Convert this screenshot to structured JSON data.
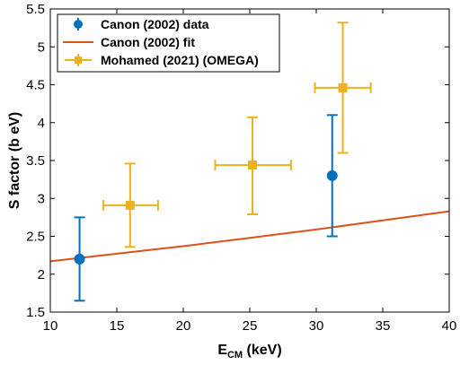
{
  "chart_data": {
    "type": "scatter",
    "xlabel_main": "E",
    "xlabel_sub": "CM",
    "xlabel_unit": " (keV)",
    "ylabel": "S factor (b eV)",
    "xlim": [
      10,
      40
    ],
    "ylim": [
      1.5,
      5.5
    ],
    "xticks": [
      10,
      15,
      20,
      25,
      30,
      35,
      40
    ],
    "yticks": [
      1.5,
      2,
      2.5,
      3,
      3.5,
      4,
      4.5,
      5,
      5.5
    ],
    "grid": false,
    "legend_position": "top-left",
    "series": [
      {
        "name": "Canon (2002) data",
        "kind": "errorbar",
        "marker": "circle",
        "color": "#0072BD",
        "points": [
          {
            "x": 12.2,
            "y": 2.2,
            "ylo": 1.65,
            "yhi": 2.75
          },
          {
            "x": 31.2,
            "y": 3.3,
            "ylo": 2.5,
            "yhi": 4.1
          }
        ]
      },
      {
        "name": "Canon (2002) fit",
        "kind": "line",
        "color": "#D95319",
        "x": [
          10,
          15,
          20,
          25,
          30,
          35,
          40
        ],
        "y": [
          2.17,
          2.27,
          2.37,
          2.48,
          2.59,
          2.71,
          2.83
        ]
      },
      {
        "name": "Mohamed (2021) (OMEGA)",
        "kind": "errorbar",
        "marker": "square",
        "color": "#EDB120",
        "points": [
          {
            "x": 16.0,
            "y": 2.91,
            "xlo": 14.0,
            "xhi": 18.1,
            "ylo": 2.36,
            "yhi": 3.46
          },
          {
            "x": 25.2,
            "y": 3.44,
            "xlo": 22.4,
            "xhi": 28.1,
            "ylo": 2.79,
            "yhi": 4.07
          },
          {
            "x": 32.0,
            "y": 4.46,
            "xlo": 29.9,
            "xhi": 34.1,
            "ylo": 3.6,
            "yhi": 5.32
          }
        ]
      }
    ]
  }
}
